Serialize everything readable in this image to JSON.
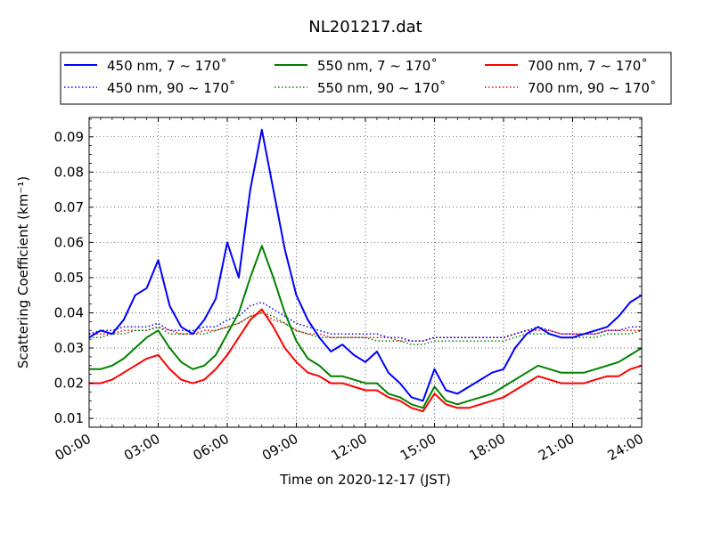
{
  "chart_data": {
    "type": "line",
    "title": "NL201217.dat",
    "xlabel": "Time on 2020-12-17 (JST)",
    "ylabel": "Scattering Coefficient (km⁻¹)",
    "x_ticks": [
      "00:00",
      "03:00",
      "06:00",
      "09:00",
      "12:00",
      "15:00",
      "18:00",
      "21:00",
      "24:00"
    ],
    "y_ticks": [
      "0.01",
      "0.02",
      "0.03",
      "0.04",
      "0.05",
      "0.06",
      "0.07",
      "0.08",
      "0.09"
    ],
    "xlim_hours": [
      0,
      24
    ],
    "ylim": [
      0.0075,
      0.0955
    ],
    "grid": true,
    "legend_placement": "top (above plot), 3 columns",
    "x_hours": [
      0,
      0.5,
      1,
      1.5,
      2,
      2.5,
      3,
      3.5,
      4,
      4.5,
      5,
      5.5,
      6,
      6.5,
      7,
      7.5,
      8,
      8.5,
      9,
      9.5,
      10,
      10.5,
      11,
      11.5,
      12,
      12.5,
      13,
      13.5,
      14,
      14.5,
      15,
      15.5,
      16,
      16.5,
      17,
      17.5,
      18,
      18.5,
      19,
      19.5,
      20,
      20.5,
      21,
      21.5,
      22,
      22.5,
      23,
      23.5,
      24
    ],
    "series": [
      {
        "name": "450 nm, 7 ~ 170˚",
        "color": "#0000ff",
        "style": "solid",
        "values": [
          0.033,
          0.035,
          0.034,
          0.038,
          0.045,
          0.047,
          0.055,
          0.042,
          0.036,
          0.034,
          0.038,
          0.044,
          0.06,
          0.05,
          0.075,
          0.092,
          0.075,
          0.058,
          0.045,
          0.038,
          0.033,
          0.029,
          0.031,
          0.028,
          0.026,
          0.029,
          0.023,
          0.02,
          0.016,
          0.015,
          0.024,
          0.018,
          0.017,
          0.019,
          0.021,
          0.023,
          0.024,
          0.03,
          0.034,
          0.036,
          0.034,
          0.033,
          0.033,
          0.034,
          0.035,
          0.036,
          0.039,
          0.043,
          0.045
        ]
      },
      {
        "name": "450 nm, 90 ~ 170˚",
        "color": "#0000ff",
        "style": "dotted",
        "values": [
          0.034,
          0.035,
          0.035,
          0.036,
          0.036,
          0.036,
          0.037,
          0.035,
          0.035,
          0.035,
          0.036,
          0.036,
          0.038,
          0.039,
          0.042,
          0.043,
          0.041,
          0.039,
          0.037,
          0.036,
          0.035,
          0.034,
          0.034,
          0.034,
          0.034,
          0.034,
          0.033,
          0.033,
          0.032,
          0.032,
          0.033,
          0.033,
          0.033,
          0.033,
          0.033,
          0.033,
          0.033,
          0.034,
          0.035,
          0.036,
          0.035,
          0.034,
          0.034,
          0.034,
          0.034,
          0.035,
          0.035,
          0.036,
          0.036
        ]
      },
      {
        "name": "550 nm, 7 ~ 170˚",
        "color": "#008000",
        "style": "solid",
        "values": [
          0.024,
          0.024,
          0.025,
          0.027,
          0.03,
          0.033,
          0.035,
          0.03,
          0.026,
          0.024,
          0.025,
          0.028,
          0.034,
          0.04,
          0.05,
          0.059,
          0.05,
          0.04,
          0.032,
          0.027,
          0.025,
          0.022,
          0.022,
          0.021,
          0.02,
          0.02,
          0.017,
          0.016,
          0.014,
          0.013,
          0.019,
          0.015,
          0.014,
          0.015,
          0.016,
          0.017,
          0.019,
          0.021,
          0.023,
          0.025,
          0.024,
          0.023,
          0.023,
          0.023,
          0.024,
          0.025,
          0.026,
          0.028,
          0.03
        ]
      },
      {
        "name": "550 nm, 90 ~ 170˚",
        "color": "#008000",
        "style": "dotted",
        "values": [
          0.033,
          0.033,
          0.034,
          0.034,
          0.035,
          0.035,
          0.036,
          0.034,
          0.034,
          0.034,
          0.034,
          0.035,
          0.036,
          0.037,
          0.039,
          0.04,
          0.039,
          0.037,
          0.035,
          0.034,
          0.033,
          0.033,
          0.033,
          0.033,
          0.033,
          0.032,
          0.032,
          0.032,
          0.031,
          0.031,
          0.032,
          0.032,
          0.032,
          0.032,
          0.032,
          0.032,
          0.032,
          0.033,
          0.034,
          0.034,
          0.034,
          0.033,
          0.033,
          0.033,
          0.033,
          0.034,
          0.034,
          0.034,
          0.035
        ]
      },
      {
        "name": "700 nm, 7 ~ 170˚",
        "color": "#ff0000",
        "style": "solid",
        "values": [
          0.02,
          0.02,
          0.021,
          0.023,
          0.025,
          0.027,
          0.028,
          0.024,
          0.021,
          0.02,
          0.021,
          0.024,
          0.028,
          0.033,
          0.038,
          0.041,
          0.036,
          0.03,
          0.026,
          0.023,
          0.022,
          0.02,
          0.02,
          0.019,
          0.018,
          0.018,
          0.016,
          0.015,
          0.013,
          0.012,
          0.017,
          0.014,
          0.013,
          0.013,
          0.014,
          0.015,
          0.016,
          0.018,
          0.02,
          0.022,
          0.021,
          0.02,
          0.02,
          0.02,
          0.021,
          0.022,
          0.022,
          0.024,
          0.025
        ]
      },
      {
        "name": "700 nm, 90 ~ 170˚",
        "color": "#ff0000",
        "style": "dotted",
        "values": [
          0.034,
          0.034,
          0.034,
          0.035,
          0.035,
          0.035,
          0.036,
          0.035,
          0.034,
          0.034,
          0.035,
          0.035,
          0.036,
          0.037,
          0.039,
          0.04,
          0.038,
          0.037,
          0.035,
          0.034,
          0.034,
          0.033,
          0.033,
          0.033,
          0.033,
          0.033,
          0.033,
          0.032,
          0.032,
          0.032,
          0.033,
          0.033,
          0.033,
          0.033,
          0.033,
          0.033,
          0.033,
          0.034,
          0.035,
          0.035,
          0.035,
          0.034,
          0.034,
          0.034,
          0.034,
          0.035,
          0.035,
          0.035,
          0.035
        ]
      }
    ]
  }
}
